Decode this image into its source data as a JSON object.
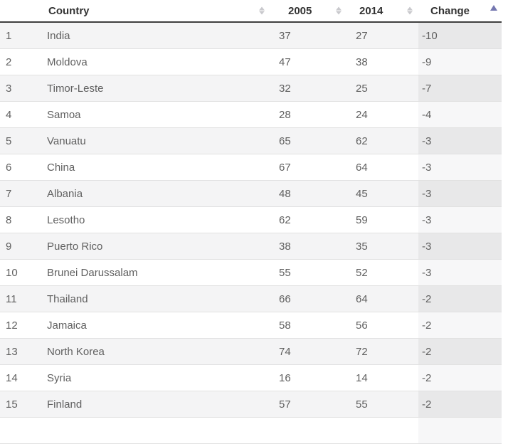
{
  "table": {
    "headers": {
      "rank": "",
      "country": "Country",
      "y2005": "2005",
      "y2014": "2014",
      "change": "Change"
    },
    "sort": {
      "column": "change",
      "direction": "ascending"
    },
    "rows": [
      {
        "rank": "1",
        "country": "India",
        "y2005": "37",
        "y2014": "27",
        "change": "-10"
      },
      {
        "rank": "2",
        "country": "Moldova",
        "y2005": "47",
        "y2014": "38",
        "change": "-9"
      },
      {
        "rank": "3",
        "country": "Timor-Leste",
        "y2005": "32",
        "y2014": "25",
        "change": "-7"
      },
      {
        "rank": "4",
        "country": "Samoa",
        "y2005": "28",
        "y2014": "24",
        "change": "-4"
      },
      {
        "rank": "5",
        "country": "Vanuatu",
        "y2005": "65",
        "y2014": "62",
        "change": "-3"
      },
      {
        "rank": "6",
        "country": "China",
        "y2005": "67",
        "y2014": "64",
        "change": "-3"
      },
      {
        "rank": "7",
        "country": "Albania",
        "y2005": "48",
        "y2014": "45",
        "change": "-3"
      },
      {
        "rank": "8",
        "country": "Lesotho",
        "y2005": "62",
        "y2014": "59",
        "change": "-3"
      },
      {
        "rank": "9",
        "country": "Puerto Rico",
        "y2005": "38",
        "y2014": "35",
        "change": "-3"
      },
      {
        "rank": "10",
        "country": "Brunei Darussalam",
        "y2005": "55",
        "y2014": "52",
        "change": "-3"
      },
      {
        "rank": "11",
        "country": "Thailand",
        "y2005": "66",
        "y2014": "64",
        "change": "-2"
      },
      {
        "rank": "12",
        "country": "Jamaica",
        "y2005": "58",
        "y2014": "56",
        "change": "-2"
      },
      {
        "rank": "13",
        "country": "North Korea",
        "y2005": "74",
        "y2014": "72",
        "change": "-2"
      },
      {
        "rank": "14",
        "country": "Syria",
        "y2005": "16",
        "y2014": "14",
        "change": "-2"
      },
      {
        "rank": "15",
        "country": "Finland",
        "y2005": "57",
        "y2014": "55",
        "change": "-2"
      }
    ]
  },
  "icons": {
    "sortable_icon": "up-down-triangles",
    "sorted_ascending_icon": "up-triangle"
  },
  "colors": {
    "header_text": "#333333",
    "header_border": "#3f3f3f",
    "body_text": "#606060",
    "row_stripe": "#f4f4f5",
    "sorted_column_stripe": "#e8e8e9",
    "sorted_column_plain": "#f7f7f8",
    "row_border": "#e1e1e1",
    "sort_icon_inactive": "#c9c9cd",
    "sort_icon_active": "#7477b0"
  }
}
